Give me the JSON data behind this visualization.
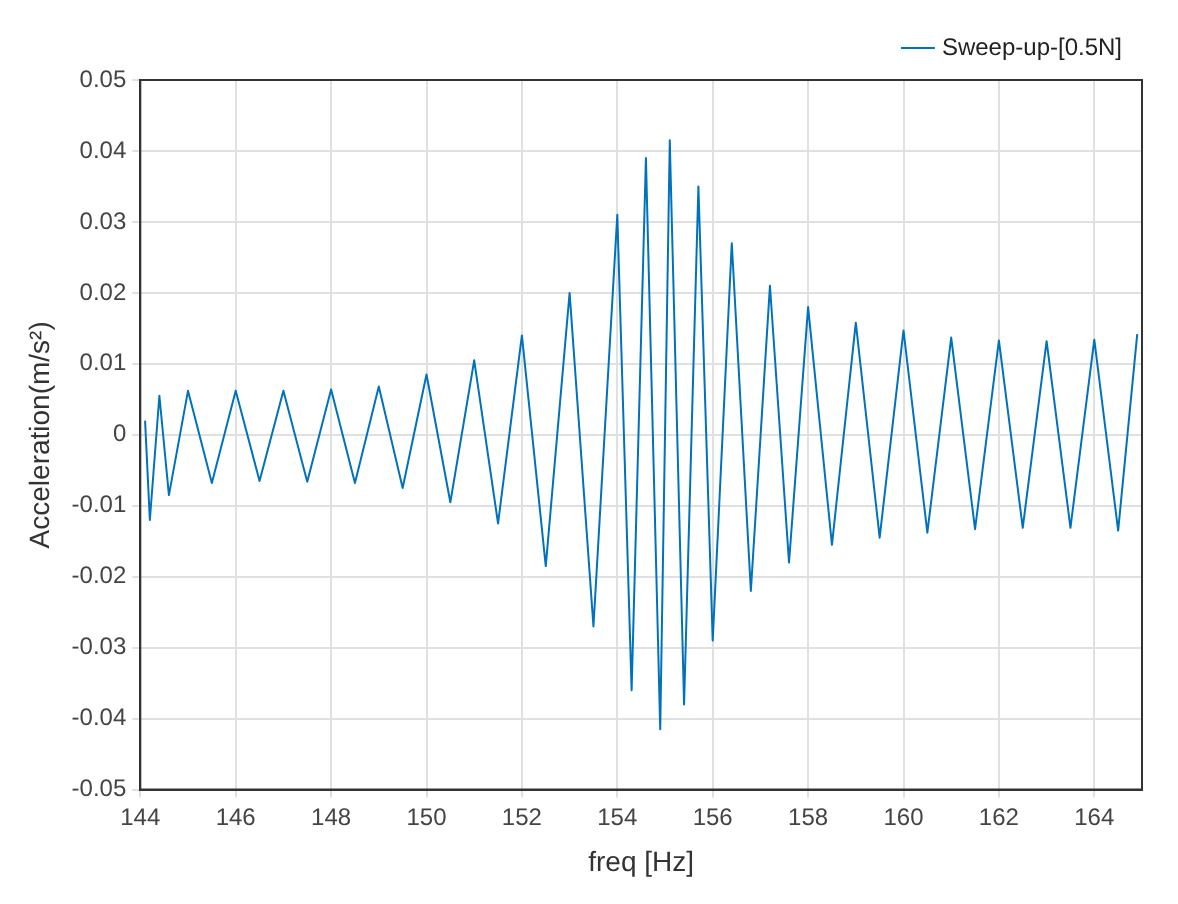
{
  "chart_data": {
    "type": "line",
    "xlabel": "freq [Hz]",
    "ylabel": "Acceleration(m/s²)",
    "xlim": [
      144,
      165
    ],
    "xticks": [
      144,
      146,
      148,
      150,
      152,
      154,
      156,
      158,
      160,
      162,
      164
    ],
    "ylim": [
      -0.05,
      0.05
    ],
    "yticks": [
      -0.05,
      -0.04,
      -0.03,
      -0.02,
      -0.01,
      0,
      0.01,
      0.02,
      0.03,
      0.04,
      0.05
    ],
    "grid": true,
    "legend": "top right",
    "marker": "none",
    "line_style": "solid",
    "series": [
      {
        "name": "Sweep-up-[0.5N]",
        "color": "#0072bd",
        "x": [
          144.1,
          144.2,
          144.4,
          144.6,
          145.0,
          145.5,
          146.0,
          146.5,
          147.0,
          147.5,
          148.0,
          148.5,
          149.0,
          149.5,
          150.0,
          150.5,
          151.0,
          151.5,
          152.0,
          152.5,
          153.0,
          153.5,
          154.0,
          154.3,
          154.6,
          154.9,
          155.1,
          155.4,
          155.7,
          156.0,
          156.4,
          156.8,
          157.2,
          157.6,
          158.0,
          158.5,
          159.0,
          159.5,
          160.0,
          160.5,
          161.0,
          161.5,
          162.0,
          162.5,
          163.0,
          163.5,
          164.0,
          164.5,
          164.9
        ],
        "values": [
          0.002,
          -0.012,
          0.0055,
          -0.0085,
          0.0062,
          -0.0068,
          0.0062,
          -0.0065,
          0.0062,
          -0.0066,
          0.0064,
          -0.0068,
          0.0068,
          -0.0075,
          0.0085,
          -0.0095,
          0.0105,
          -0.0125,
          0.014,
          -0.0185,
          0.02,
          -0.027,
          0.031,
          -0.036,
          0.039,
          -0.0415,
          0.0415,
          -0.038,
          0.035,
          -0.029,
          0.027,
          -0.022,
          0.021,
          -0.018,
          0.018,
          -0.0155,
          0.0158,
          -0.0145,
          0.0147,
          -0.0138,
          0.0137,
          -0.0133,
          0.0133,
          -0.0131,
          0.0132,
          -0.0131,
          0.0134,
          -0.0135,
          0.0142
        ]
      }
    ]
  }
}
